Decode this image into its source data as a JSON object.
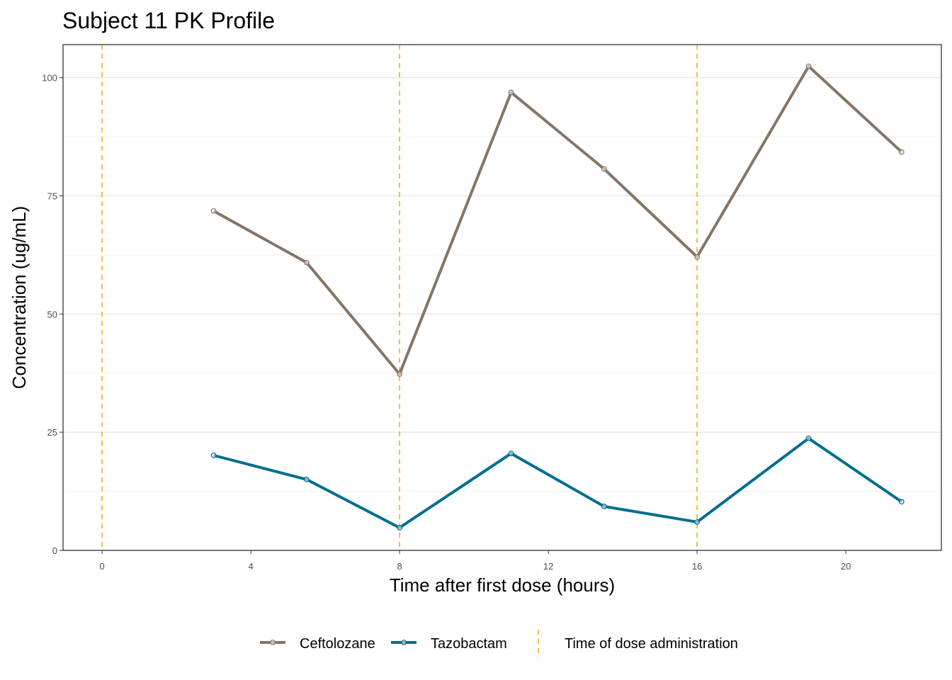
{
  "chart_data": {
    "type": "line",
    "title": "Subject 11 PK Profile",
    "xlabel": "Time after first dose (hours)",
    "ylabel": "Concentration (ug/mL)",
    "xlim": [
      -1.05,
      22.57
    ],
    "ylim": [
      0,
      107
    ],
    "xticks": [
      0,
      4,
      8,
      12,
      16,
      20
    ],
    "yticks": [
      0,
      25,
      50,
      75,
      100
    ],
    "grid": true,
    "legend_position": "bottom",
    "series": [
      {
        "name": "Ceftolozane",
        "color": "#857565",
        "x": [
          3,
          5.5,
          8,
          11,
          13.5,
          16,
          19,
          21.5
        ],
        "y": [
          71.8,
          60.9,
          37.3,
          96.9,
          80.7,
          62.1,
          102.4,
          84.3
        ]
      },
      {
        "name": "Tazobactam",
        "color": "#006e8f",
        "x": [
          3,
          5.5,
          8,
          11,
          13.5,
          16,
          19,
          21.5
        ],
        "y": [
          20.1,
          15.0,
          4.8,
          20.5,
          9.3,
          6.0,
          23.7,
          10.3
        ]
      }
    ],
    "dose_times": {
      "name": "Time of dose administration",
      "color": "#f7a823",
      "x": [
        0,
        8,
        16
      ]
    }
  }
}
